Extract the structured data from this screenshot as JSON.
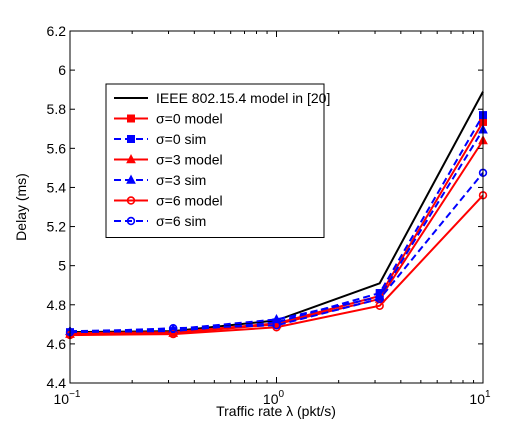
{
  "chart_data": {
    "type": "line",
    "xlabel": "Traffic rate λ (pkt/s)",
    "ylabel": "Delay (ms)",
    "xscale": "log",
    "xlim": [
      0.1,
      10
    ],
    "ylim": [
      4.4,
      6.2
    ],
    "x_ticks": [
      {
        "value": 0.1,
        "base": "10",
        "exp": "−1"
      },
      {
        "value": 1,
        "base": "10",
        "exp": "0"
      },
      {
        "value": 10,
        "base": "10",
        "exp": "1"
      }
    ],
    "y_ticks": [
      "4.4",
      "4.6",
      "4.8",
      "5",
      "5.2",
      "5.4",
      "5.6",
      "5.8",
      "6",
      "6.2"
    ],
    "grid": false,
    "legend_position": "upper-left",
    "x": [
      0.1,
      0.316,
      1,
      3.16,
      10
    ],
    "series": [
      {
        "name": "IEEE 802.15.4 model in [20]",
        "color": "#000000",
        "dash": "solid",
        "marker": "none",
        "values": [
          4.66,
          4.665,
          4.72,
          4.91,
          5.89
        ]
      },
      {
        "name": "σ=0 model",
        "color": "#ff0000",
        "dash": "solid",
        "marker": "square",
        "values": [
          4.655,
          4.66,
          4.705,
          4.845,
          5.735
        ]
      },
      {
        "name": "σ=0 sim",
        "color": "#0000ff",
        "dash": "dashed",
        "marker": "square",
        "values": [
          4.66,
          4.665,
          4.71,
          4.86,
          5.77
        ]
      },
      {
        "name": "σ=3 model",
        "color": "#ff0000",
        "dash": "solid",
        "marker": "triangle",
        "values": [
          4.65,
          4.655,
          4.7,
          4.83,
          5.64
        ]
      },
      {
        "name": "σ=3 sim",
        "color": "#0000ff",
        "dash": "dashed",
        "marker": "triangle",
        "values": [
          4.665,
          4.675,
          4.725,
          4.84,
          5.695
        ]
      },
      {
        "name": "σ=6 model",
        "color": "#ff0000",
        "dash": "solid",
        "marker": "circle",
        "values": [
          4.645,
          4.65,
          4.685,
          4.795,
          5.36
        ]
      },
      {
        "name": "σ=6 sim",
        "color": "#0000ff",
        "dash": "dashed",
        "marker": "circle",
        "values": [
          4.66,
          4.68,
          4.695,
          4.83,
          5.475
        ]
      }
    ]
  }
}
